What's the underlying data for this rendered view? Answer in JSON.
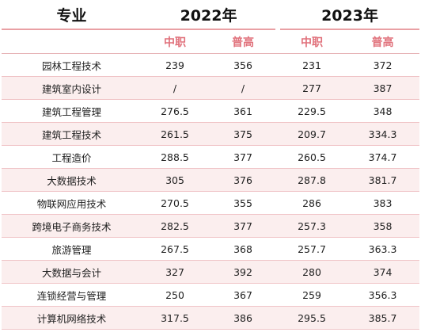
{
  "header": {
    "major_label": "专业",
    "years": [
      "2022年",
      "2023年"
    ],
    "sub_labels": [
      "中职",
      "普高",
      "中职",
      "普高"
    ]
  },
  "rows": [
    {
      "major": "园林工程技术",
      "v": [
        "239",
        "356",
        "231",
        "372"
      ]
    },
    {
      "major": "建筑室内设计",
      "v": [
        "/",
        "/",
        "277",
        "387"
      ]
    },
    {
      "major": "建筑工程管理",
      "v": [
        "276.5",
        "361",
        "229.5",
        "348"
      ]
    },
    {
      "major": "建筑工程技术",
      "v": [
        "261.5",
        "375",
        "209.7",
        "334.3"
      ]
    },
    {
      "major": "工程造价",
      "v": [
        "288.5",
        "377",
        "260.5",
        "374.7"
      ]
    },
    {
      "major": "大数据技术",
      "v": [
        "305",
        "376",
        "287.8",
        "381.7"
      ]
    },
    {
      "major": "物联网应用技术",
      "v": [
        "270.5",
        "355",
        "286",
        "383"
      ]
    },
    {
      "major": "跨境电子商务技术",
      "v": [
        "282.5",
        "377",
        "257.3",
        "358"
      ]
    },
    {
      "major": "旅游管理",
      "v": [
        "267.5",
        "368",
        "257.7",
        "363.3"
      ]
    },
    {
      "major": "大数据与会计",
      "v": [
        "327",
        "392",
        "280",
        "374"
      ]
    },
    {
      "major": "连锁经营与管理",
      "v": [
        "250",
        "367",
        "259",
        "356.3"
      ]
    },
    {
      "major": "计算机网络技术",
      "v": [
        "317.5",
        "386",
        "295.5",
        "385.7"
      ]
    }
  ],
  "colors": {
    "accent": "#e0707a",
    "row_stripe": "#fbeeee",
    "rule": "#e9a0a4"
  }
}
